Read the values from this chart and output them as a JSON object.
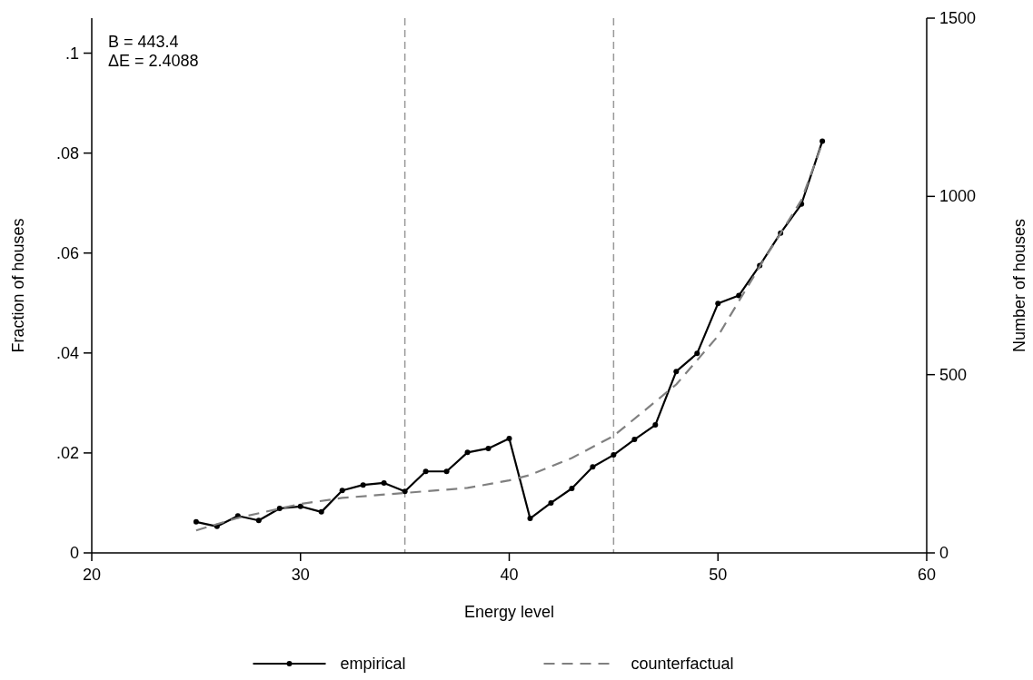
{
  "chart_data": {
    "type": "line",
    "xlabel": "Energy level",
    "ylabel": "Fraction of houses",
    "y2label": "Number of houses",
    "xlim": [
      20,
      60
    ],
    "xticks": [
      20,
      30,
      40,
      50,
      60
    ],
    "ylim": [
      0,
      0.107
    ],
    "yticks": [
      {
        "value": 0,
        "label": "0"
      },
      {
        "value": 0.02,
        "label": ".02"
      },
      {
        "value": 0.04,
        "label": ".04"
      },
      {
        "value": 0.06,
        "label": ".06"
      },
      {
        "value": 0.08,
        "label": ".08"
      },
      {
        "value": 0.1,
        "label": ".1"
      }
    ],
    "y2lim": [
      0,
      1500
    ],
    "y2ticks": [
      0,
      500,
      1000,
      1500
    ],
    "grid": false,
    "legend": "bottom",
    "annotations": [
      "B = 443.4",
      "ΔE = 2.4088"
    ],
    "ref_lines": [
      {
        "axis": "x",
        "value": 35,
        "color": "#999999",
        "line_style": "dashed"
      },
      {
        "axis": "x",
        "value": 45,
        "color": "#999999",
        "line_style": "dashed"
      }
    ],
    "series": [
      {
        "name": "empirical",
        "color": "#000000",
        "marker": "circle",
        "line_style": "solid",
        "x": [
          25,
          26,
          27,
          28,
          29,
          30,
          31,
          32,
          33,
          34,
          35,
          36,
          37,
          38,
          39,
          40,
          41,
          42,
          43,
          44,
          45,
          46,
          47,
          48,
          49,
          50,
          51,
          52,
          53,
          54,
          55
        ],
        "values": [
          0.0062,
          0.0053,
          0.0074,
          0.0065,
          0.0089,
          0.0093,
          0.0082,
          0.0125,
          0.0136,
          0.014,
          0.0123,
          0.0163,
          0.0163,
          0.0201,
          0.0209,
          0.0229,
          0.0069,
          0.01,
          0.0129,
          0.0172,
          0.0196,
          0.0227,
          0.0256,
          0.0363,
          0.0399,
          0.0499,
          0.0515,
          0.0575,
          0.064,
          0.0698,
          0.0824
        ]
      },
      {
        "name": "counterfactual",
        "color": "#808080",
        "marker": "none",
        "line_style": "dashed",
        "x": [
          25,
          27,
          30,
          32,
          35,
          38,
          40,
          41,
          43,
          45,
          48,
          50,
          52,
          54,
          55
        ],
        "values": [
          0.0045,
          0.007,
          0.0098,
          0.011,
          0.012,
          0.013,
          0.0145,
          0.0156,
          0.019,
          0.0234,
          0.0337,
          0.0434,
          0.0573,
          0.0706,
          0.082
        ]
      }
    ]
  }
}
